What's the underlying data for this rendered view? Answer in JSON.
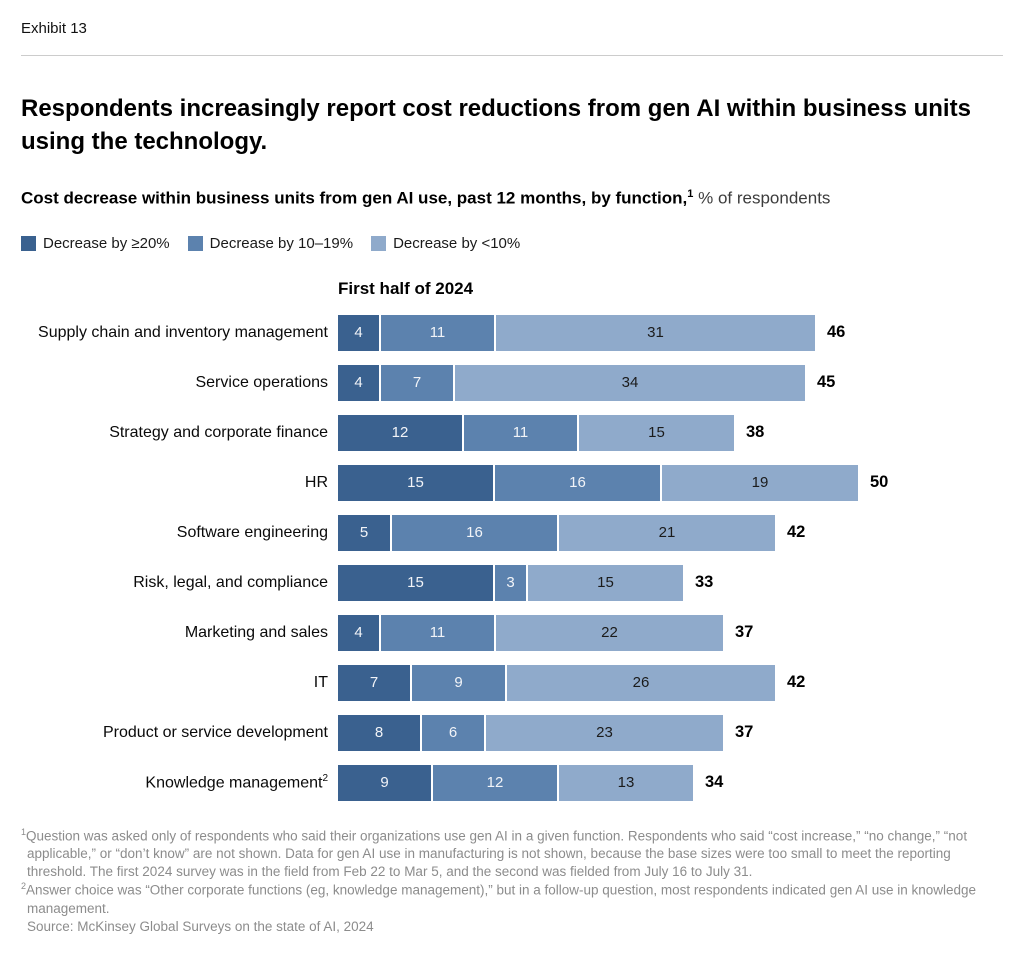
{
  "exhibit_label": "Exhibit 13",
  "title": "Respondents increasingly report cost reductions from gen AI within business units using the technology.",
  "subtitle": {
    "bold": "Cost decrease within business units from gen AI use, past 12 months, by function,",
    "sup": "1",
    "regular": " % of respondents"
  },
  "legend": [
    {
      "label": "Decrease by ≥20%",
      "color": "#3a618f"
    },
    {
      "label": "Decrease by 10–19%",
      "color": "#5c82ae"
    },
    {
      "label": "Decrease by <10%",
      "color": "#8faacb"
    }
  ],
  "chart_data": {
    "type": "bar",
    "orientation": "horizontal",
    "stacked": true,
    "title": "First half of 2024",
    "unit": "% of respondents",
    "xlim": [
      0,
      50
    ],
    "grid": false,
    "legend_position": "top-left",
    "value_labels": "inside",
    "categories": [
      {
        "label": "Supply chain and inventory management",
        "sup": ""
      },
      {
        "label": "Service operations",
        "sup": ""
      },
      {
        "label": "Strategy and corporate finance",
        "sup": ""
      },
      {
        "label": "HR",
        "sup": ""
      },
      {
        "label": "Software engineering",
        "sup": ""
      },
      {
        "label": "Risk, legal, and compliance",
        "sup": ""
      },
      {
        "label": "Marketing and sales",
        "sup": ""
      },
      {
        "label": "IT",
        "sup": ""
      },
      {
        "label": "Product or service development",
        "sup": ""
      },
      {
        "label": "Knowledge management",
        "sup": "2"
      }
    ],
    "series": [
      {
        "name": "Decrease by ≥20%",
        "color": "#3a618f",
        "values": [
          4,
          4,
          12,
          15,
          5,
          15,
          4,
          7,
          8,
          9
        ]
      },
      {
        "name": "Decrease by 10–19%",
        "color": "#5c82ae",
        "values": [
          11,
          7,
          11,
          16,
          16,
          3,
          11,
          9,
          6,
          12
        ]
      },
      {
        "name": "Decrease by <10%",
        "color": "#8faacb",
        "values": [
          31,
          34,
          15,
          19,
          21,
          15,
          22,
          26,
          23,
          13
        ]
      }
    ],
    "totals": [
      46,
      45,
      38,
      50,
      42,
      33,
      37,
      42,
      37,
      34
    ]
  },
  "footnotes": [
    {
      "marker": "1",
      "text": "Question was asked only of respondents who said their organizations use gen AI in a given function. Respondents who said “cost increase,” “no change,” “not applicable,” or “don’t know” are not shown. Data for gen AI use in manufacturing is not shown, because the base sizes were too small to meet the reporting threshold. The first 2024 survey was in the field from Feb 22 to Mar 5, and the second was fielded from July 16 to July 31."
    },
    {
      "marker": "2",
      "text": "Answer choice was “Other corporate functions (eg, knowledge management),” but in a follow-up question, most respondents indicated gen AI use in knowledge management."
    }
  ],
  "source": "Source: McKinsey Global Surveys on the state of AI, 2024"
}
